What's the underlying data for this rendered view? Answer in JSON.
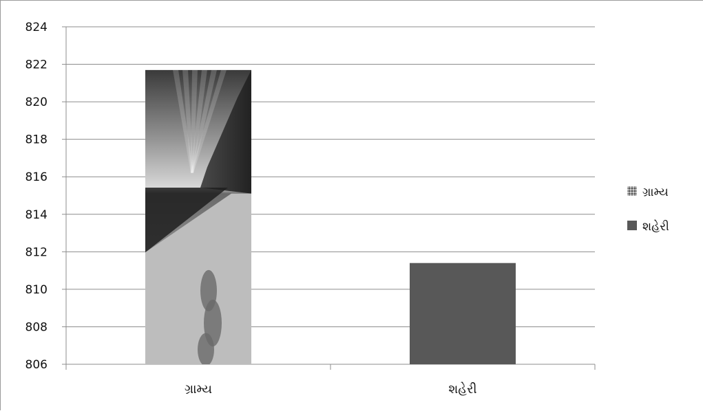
{
  "chart_data": {
    "type": "bar",
    "categories": [
      "ગ્રામ્ય",
      "શહેરી"
    ],
    "values": [
      821.7,
      811.4
    ],
    "ylim": [
      806,
      824
    ],
    "y_ticks": [
      "806",
      "808",
      "810",
      "812",
      "814",
      "816",
      "818",
      "820",
      "822",
      "824"
    ],
    "grid": true,
    "legend": {
      "placement": "right",
      "entries": [
        "ગ્રામ્ય",
        "શહેરી"
      ]
    },
    "colors": {
      "bar_urban": "#585858",
      "bar_rural_fill": "photo-texture",
      "gridline": "#8c8c8c",
      "axis": "#8c8c8c"
    }
  }
}
